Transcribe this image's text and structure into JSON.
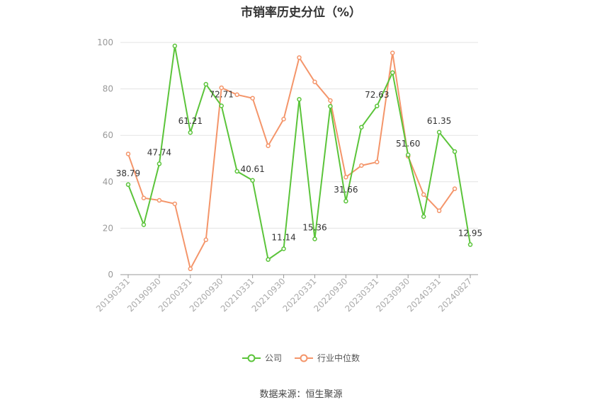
{
  "chart_data": {
    "type": "line",
    "title": "市销率历史分位（%）",
    "source": "数据来源：恒生聚源",
    "ylim": [
      0,
      100
    ],
    "yticks": [
      "0",
      "20",
      "40",
      "60",
      "80",
      "100"
    ],
    "grid": true,
    "legend_position": "bottom",
    "x": [
      "20190331",
      "20190630",
      "20190930",
      "20191231",
      "20200331",
      "20200630",
      "20200930",
      "20201231",
      "20210331",
      "20210630",
      "20210930",
      "20211231",
      "20220331",
      "20220630",
      "20220930",
      "20221231",
      "20230331",
      "20230630",
      "20230930",
      "20231231",
      "20240331",
      "20240630",
      "20240827"
    ],
    "xtick_labels": [
      "20190331",
      "20190930",
      "20200331",
      "20200930",
      "20210331",
      "20210930",
      "20220331",
      "20220930",
      "20230331",
      "20230930",
      "20240331",
      "20240827"
    ],
    "series": [
      {
        "name": "公司",
        "color": "#5bc43a",
        "values": [
          38.79,
          21.5,
          47.74,
          98.5,
          61.21,
          82.0,
          72.71,
          44.5,
          40.61,
          6.5,
          11.14,
          75.5,
          15.36,
          72.5,
          31.66,
          63.5,
          72.63,
          87.0,
          51.6,
          25.0,
          61.35,
          53.0,
          12.95
        ],
        "labels": [
          "38.79",
          "",
          "47.74",
          "",
          "61.21",
          "",
          "72.71",
          "",
          "40.61",
          "",
          "11.14",
          "",
          "15.36",
          "",
          "31.66",
          "",
          "72.63",
          "",
          "51.60",
          "",
          "61.35",
          "",
          "12.95"
        ]
      },
      {
        "name": "行业中位数",
        "color": "#f4956a",
        "values": [
          52.0,
          33.0,
          32.0,
          30.5,
          2.5,
          15.0,
          80.5,
          77.5,
          76.0,
          55.5,
          67.0,
          93.5,
          83.0,
          75.0,
          42.0,
          47.0,
          48.5,
          95.5,
          51.0,
          34.5,
          27.5,
          37.0,
          null
        ]
      }
    ]
  }
}
